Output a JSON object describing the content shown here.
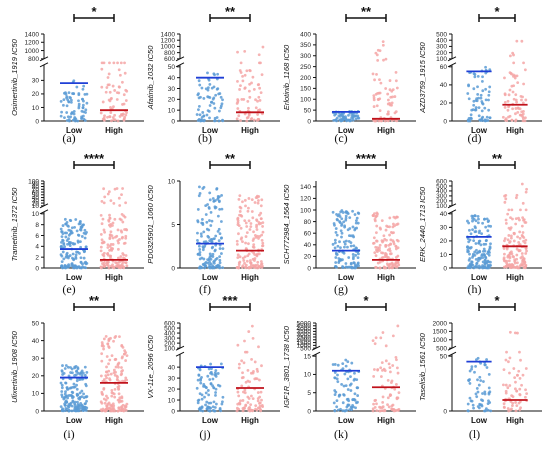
{
  "colors": {
    "low_points": "#5b9bd5",
    "high_points": "#f4a6a6",
    "low_mean": "#1f3fd6",
    "high_mean": "#c0121b",
    "axis": "#111111"
  },
  "chart_data": [
    {
      "type": "scatter",
      "panel": "(a)",
      "ylabel": "Osimertinib_1919 IC50",
      "categories": [
        "Low",
        "High"
      ],
      "significance": "*",
      "ylim_lower": [
        0,
        40
      ],
      "ylim_upper": [
        800,
        1400
      ],
      "ticks_lower": [
        0,
        10,
        20,
        30
      ],
      "ticks_upper": [
        800,
        1000,
        1200,
        1400
      ],
      "means": [
        28,
        8
      ],
      "spread": [
        [
          0,
          30
        ],
        [
          0,
          1250
        ]
      ],
      "n_points": [
        70,
        70
      ]
    },
    {
      "type": "scatter",
      "panel": "(b)",
      "ylabel": "Afatinib_1032 IC50",
      "categories": [
        "Low",
        "High"
      ],
      "significance": "**",
      "ylim_lower": [
        0,
        50
      ],
      "ylim_upper": [
        600,
        1400
      ],
      "ticks_lower": [
        0,
        10,
        20,
        30,
        40,
        50
      ],
      "ticks_upper": [
        600,
        800,
        1000,
        1200,
        1400
      ],
      "means": [
        40,
        8
      ],
      "spread": [
        [
          0,
          45
        ],
        [
          0,
          1100
        ]
      ],
      "n_points": [
        70,
        70
      ]
    },
    {
      "type": "scatter",
      "panel": "(c)",
      "ylabel": "Erlotinib_1168 IC50",
      "categories": [
        "Low",
        "High"
      ],
      "significance": "**",
      "ylim": [
        0,
        400
      ],
      "ticks": [
        0,
        50,
        100,
        150,
        200,
        250,
        300,
        350,
        400
      ],
      "means": [
        42,
        10
      ],
      "spread": [
        [
          0,
          45
        ],
        [
          0,
          380
        ]
      ],
      "n_points": [
        70,
        70
      ]
    },
    {
      "type": "scatter",
      "panel": "(d)",
      "ylabel": "AZD3759_1915 IC50",
      "categories": [
        "Low",
        "High"
      ],
      "significance": "*",
      "ylim_lower": [
        0,
        60
      ],
      "ylim_upper": [
        100,
        500
      ],
      "ticks_lower": [
        0,
        20,
        40,
        60
      ],
      "ticks_upper": [
        100,
        200,
        300,
        400,
        500
      ],
      "means": [
        55,
        18
      ],
      "spread": [
        [
          0,
          60
        ],
        [
          0,
          400
        ]
      ],
      "n_points": [
        70,
        70
      ]
    },
    {
      "type": "scatter",
      "panel": "(e)",
      "ylabel": "Trametinib_1372 IC50",
      "categories": [
        "Low",
        "High"
      ],
      "significance": "****",
      "ylim_lower": [
        0,
        10
      ],
      "ylim_upper": [
        10,
        100
      ],
      "ticks_lower": [
        0,
        2,
        4,
        6,
        8,
        10
      ],
      "ticks_upper": [
        10,
        20,
        30,
        40,
        50,
        60,
        70,
        80,
        90,
        100
      ],
      "means": [
        3.5,
        1.5
      ],
      "spread": [
        [
          0,
          9
        ],
        [
          0,
          75
        ]
      ],
      "n_points": [
        150,
        150
      ]
    },
    {
      "type": "scatter",
      "panel": "(f)",
      "ylabel": "PD0325901_1060 IC50",
      "categories": [
        "Low",
        "High"
      ],
      "significance": "**",
      "ylim": [
        0,
        10
      ],
      "ticks": [
        0,
        5,
        10
      ],
      "means": [
        2.8,
        2.0
      ],
      "spread": [
        [
          0,
          9.5
        ],
        [
          0,
          8.5
        ]
      ],
      "n_points": [
        150,
        150
      ]
    },
    {
      "type": "scatter",
      "panel": "(g)",
      "ylabel": "SCH772984_1564 IC50",
      "categories": [
        "Low",
        "High"
      ],
      "significance": "****",
      "ylim": [
        0,
        150
      ],
      "ticks": [
        0,
        20,
        40,
        60,
        80,
        100,
        120,
        140
      ],
      "means": [
        30,
        14
      ],
      "spread": [
        [
          0,
          100
        ],
        [
          0,
          95
        ]
      ],
      "n_points": [
        130,
        130
      ]
    },
    {
      "type": "scatter",
      "panel": "(h)",
      "ylabel": "ERK_2440_1713 IC50",
      "categories": [
        "Low",
        "High"
      ],
      "significance": "**",
      "ylim_lower": [
        0,
        40
      ],
      "ylim_upper": [
        100,
        600
      ],
      "ticks_lower": [
        0,
        10,
        20,
        30,
        40
      ],
      "ticks_upper": [
        100,
        200,
        300,
        400,
        500,
        600
      ],
      "means": [
        23,
        16
      ],
      "spread": [
        [
          0,
          40
        ],
        [
          0,
          540
        ]
      ],
      "n_points": [
        150,
        150
      ]
    },
    {
      "type": "scatter",
      "panel": "(i)",
      "ylabel": "Ulixertinib_1908 IC50",
      "categories": [
        "Low",
        "High"
      ],
      "significance": "**",
      "ylim": [
        0,
        50
      ],
      "ticks": [
        0,
        10,
        20,
        30,
        40,
        50
      ],
      "means": [
        19,
        16
      ],
      "spread": [
        [
          0,
          26
        ],
        [
          0,
          43
        ]
      ],
      "n_points": [
        170,
        170
      ]
    },
    {
      "type": "scatter",
      "panel": "(j)",
      "ylabel": "VX-11e_2096 IC50",
      "categories": [
        "Low",
        "High"
      ],
      "significance": "***",
      "ylim_lower": [
        0,
        50
      ],
      "ylim_upper": [
        100,
        600
      ],
      "ticks_lower": [
        0,
        10,
        20,
        30,
        40
      ],
      "ticks_upper": [
        100,
        200,
        300,
        400,
        500,
        600
      ],
      "means": [
        40,
        21
      ],
      "spread": [
        [
          0,
          43
        ],
        [
          0,
          560
        ]
      ],
      "n_points": [
        90,
        90
      ]
    },
    {
      "type": "scatter",
      "panel": "(k)",
      "ylabel": "IGF1R_3801_1738 IC50",
      "categories": [
        "Low",
        "High"
      ],
      "significance": "*",
      "ylim_lower": [
        0,
        15
      ],
      "ylim_upper": [
        500,
        5000
      ],
      "ticks_lower": [
        0,
        5,
        10,
        15
      ],
      "ticks_upper": [
        500,
        1000,
        1500,
        2000,
        2500,
        3000,
        3500,
        4000,
        4500,
        5000
      ],
      "means": [
        11,
        6.5
      ],
      "spread": [
        [
          0,
          14
        ],
        [
          0,
          4600
        ]
      ],
      "n_points": [
        80,
        80
      ]
    },
    {
      "type": "scatter",
      "panel": "(l)",
      "ylabel": "Taselisib_1561 IC50",
      "categories": [
        "Low",
        "High"
      ],
      "significance": "*",
      "ylim_lower": [
        0,
        50
      ],
      "ylim_upper": [
        500,
        2000
      ],
      "ticks_lower": [
        0,
        50
      ],
      "ticks_upper": [
        500,
        1000,
        1500,
        2000
      ],
      "means": [
        45,
        10
      ],
      "spread": [
        [
          0,
          50
        ],
        [
          0,
          1600
        ]
      ],
      "n_points": [
        60,
        60
      ]
    }
  ]
}
